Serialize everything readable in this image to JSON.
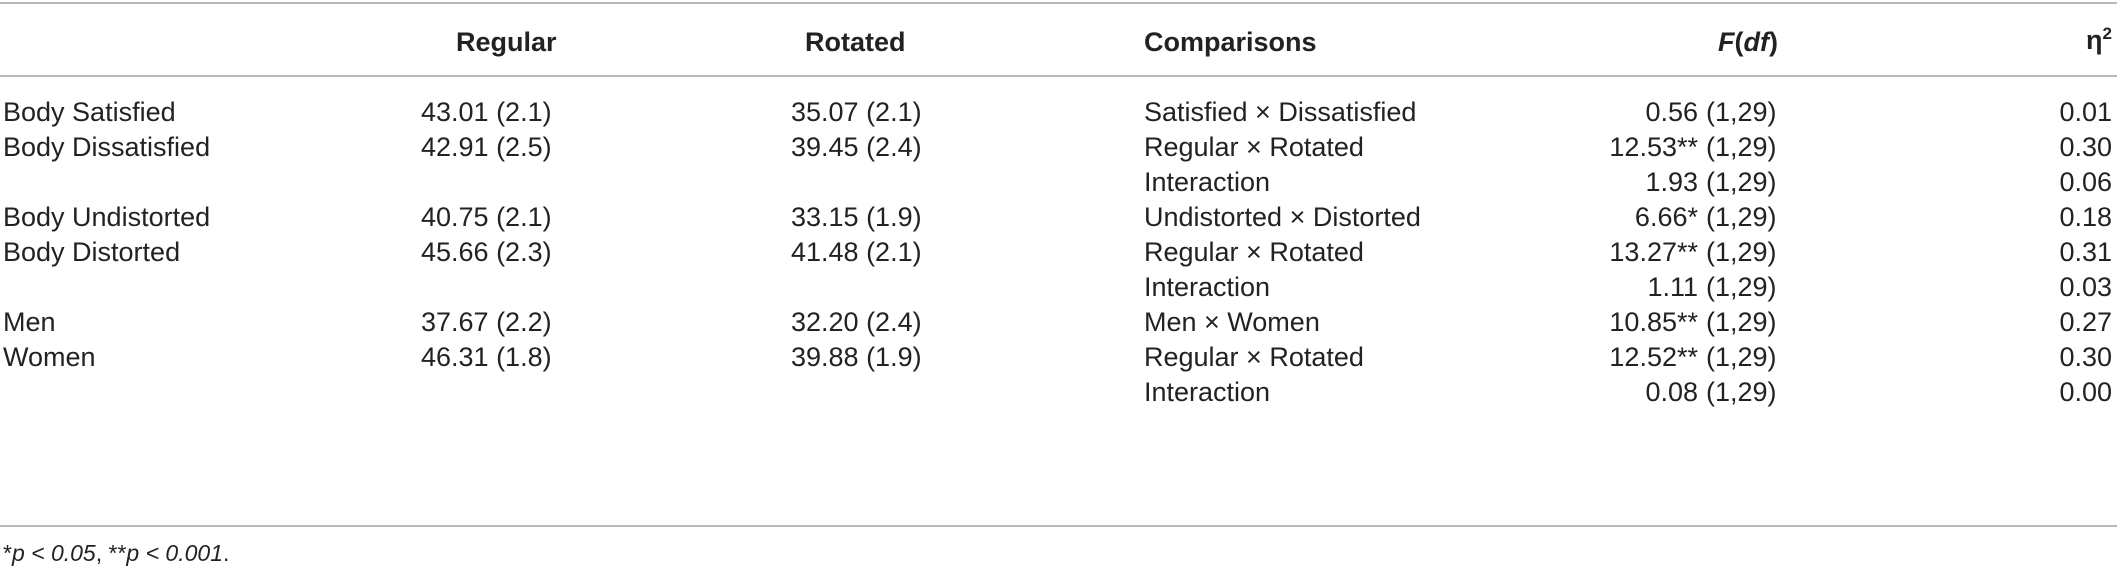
{
  "header": {
    "col1": "",
    "regular": "Regular",
    "rotated": "Rotated",
    "comparisons": "Comparisons",
    "f_df_f": "F",
    "f_df_df": "df",
    "eta": "η",
    "eta_sup": "2"
  },
  "rows": [
    {
      "label": "Body Satisfied",
      "regular": "43.01 (2.1)",
      "rotated": "35.07 (2.1)",
      "comparison": "Satisfied × Dissatisfied",
      "f": "0.56",
      "stars": "",
      "df": "(1,29)",
      "eta": "0.01"
    },
    {
      "label": "Body Dissatisfied",
      "regular": "42.91 (2.5)",
      "rotated": "39.45 (2.4)",
      "comparison": "Regular × Rotated",
      "f": "12.53",
      "stars": "**",
      "df": "(1,29)",
      "eta": "0.30"
    },
    {
      "label": "",
      "regular": "",
      "rotated": "",
      "comparison": "Interaction",
      "f": "1.93",
      "stars": "",
      "df": "(1,29)",
      "eta": "0.06"
    },
    {
      "label": "Body Undistorted",
      "regular": "40.75 (2.1)",
      "rotated": "33.15 (1.9)",
      "comparison": "Undistorted × Distorted",
      "f": "6.66",
      "stars": "*",
      "df": "(1,29)",
      "eta": "0.18"
    },
    {
      "label": "Body Distorted",
      "regular": "45.66 (2.3)",
      "rotated": "41.48 (2.1)",
      "comparison": "Regular × Rotated",
      "f": "13.27",
      "stars": "**",
      "df": "(1,29)",
      "eta": "0.31"
    },
    {
      "label": "",
      "regular": "",
      "rotated": "",
      "comparison": "Interaction",
      "f": "1.11",
      "stars": "",
      "df": "(1,29)",
      "eta": "0.03"
    },
    {
      "label": "Men",
      "regular": "37.67 (2.2)",
      "rotated": "32.20 (2.4)",
      "comparison": "Men × Women",
      "f": "10.85",
      "stars": "**",
      "df": "(1,29)",
      "eta": "0.27"
    },
    {
      "label": "Women",
      "regular": "46.31 (1.8)",
      "rotated": "39.88 (1.9)",
      "comparison": "Regular × Rotated",
      "f": "12.52",
      "stars": "**",
      "df": "(1,29)",
      "eta": "0.30"
    },
    {
      "label": "",
      "regular": "",
      "rotated": "",
      "comparison": "Interaction",
      "f": "0.08",
      "stars": "",
      "df": "(1,29)",
      "eta": "0.00"
    }
  ],
  "footnote": {
    "star1": "*",
    "p1": "p < 0.05",
    "sep": ", ",
    "star2": "**",
    "p2": "p < 0.001",
    "end": "."
  }
}
